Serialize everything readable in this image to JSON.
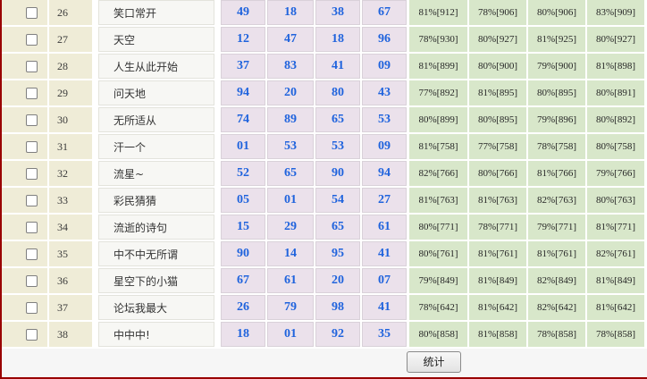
{
  "table": {
    "rows": [
      {
        "id": "26",
        "name": "笑口常开",
        "checked": false,
        "numbers": [
          "49",
          "18",
          "38",
          "67"
        ],
        "stats": [
          "81%[912]",
          "78%[906]",
          "80%[906]",
          "83%[909]"
        ]
      },
      {
        "id": "27",
        "name": "天空",
        "checked": false,
        "numbers": [
          "12",
          "47",
          "18",
          "96"
        ],
        "stats": [
          "78%[930]",
          "80%[927]",
          "81%[925]",
          "80%[927]"
        ]
      },
      {
        "id": "28",
        "name": "人生从此开始",
        "checked": false,
        "numbers": [
          "37",
          "83",
          "41",
          "09"
        ],
        "stats": [
          "81%[899]",
          "80%[900]",
          "79%[900]",
          "81%[898]"
        ]
      },
      {
        "id": "29",
        "name": "问天地",
        "checked": false,
        "numbers": [
          "94",
          "20",
          "80",
          "43"
        ],
        "stats": [
          "77%[892]",
          "81%[895]",
          "80%[895]",
          "80%[891]"
        ]
      },
      {
        "id": "30",
        "name": "无所适从",
        "checked": false,
        "numbers": [
          "74",
          "89",
          "65",
          "53"
        ],
        "stats": [
          "80%[899]",
          "80%[895]",
          "79%[896]",
          "80%[892]"
        ]
      },
      {
        "id": "31",
        "name": "汗一个",
        "checked": false,
        "numbers": [
          "01",
          "53",
          "53",
          "09"
        ],
        "stats": [
          "81%[758]",
          "77%[758]",
          "78%[758]",
          "80%[758]"
        ]
      },
      {
        "id": "32",
        "name": "流星~",
        "checked": false,
        "numbers": [
          "52",
          "65",
          "90",
          "94"
        ],
        "stats": [
          "82%[766]",
          "80%[766]",
          "81%[766]",
          "79%[766]"
        ]
      },
      {
        "id": "33",
        "name": "彩民猜猜",
        "checked": false,
        "numbers": [
          "05",
          "01",
          "54",
          "27"
        ],
        "stats": [
          "81%[763]",
          "81%[763]",
          "82%[763]",
          "80%[763]"
        ]
      },
      {
        "id": "34",
        "name": "流逝的诗句",
        "checked": false,
        "numbers": [
          "15",
          "29",
          "65",
          "61"
        ],
        "stats": [
          "80%[771]",
          "78%[771]",
          "79%[771]",
          "81%[771]"
        ]
      },
      {
        "id": "35",
        "name": "中不中无所谓",
        "checked": false,
        "numbers": [
          "90",
          "14",
          "95",
          "41"
        ],
        "stats": [
          "80%[761]",
          "81%[761]",
          "81%[761]",
          "82%[761]"
        ]
      },
      {
        "id": "36",
        "name": "星空下的小猫",
        "checked": false,
        "numbers": [
          "67",
          "61",
          "20",
          "07"
        ],
        "stats": [
          "79%[849]",
          "81%[849]",
          "82%[849]",
          "81%[849]"
        ]
      },
      {
        "id": "37",
        "name": "论坛我最大",
        "checked": false,
        "numbers": [
          "26",
          "79",
          "98",
          "41"
        ],
        "stats": [
          "78%[642]",
          "81%[642]",
          "82%[642]",
          "81%[642]"
        ]
      },
      {
        "id": "38",
        "name": "中中中!",
        "checked": false,
        "numbers": [
          "18",
          "01",
          "92",
          "35"
        ],
        "stats": [
          "80%[858]",
          "81%[858]",
          "78%[858]",
          "78%[858]"
        ]
      }
    ]
  },
  "footer": {
    "stats_button_label": "统计"
  },
  "colors": {
    "page_border": "#990000",
    "row_id_bg": "#efecd7",
    "name_bg": "#f7f7f4",
    "pick_number_bg": "#ebe1eb",
    "pick_number_text": "#1f63dd",
    "stat_bg": "#d8e7ca",
    "footer_bg": "#f6f6f6"
  }
}
